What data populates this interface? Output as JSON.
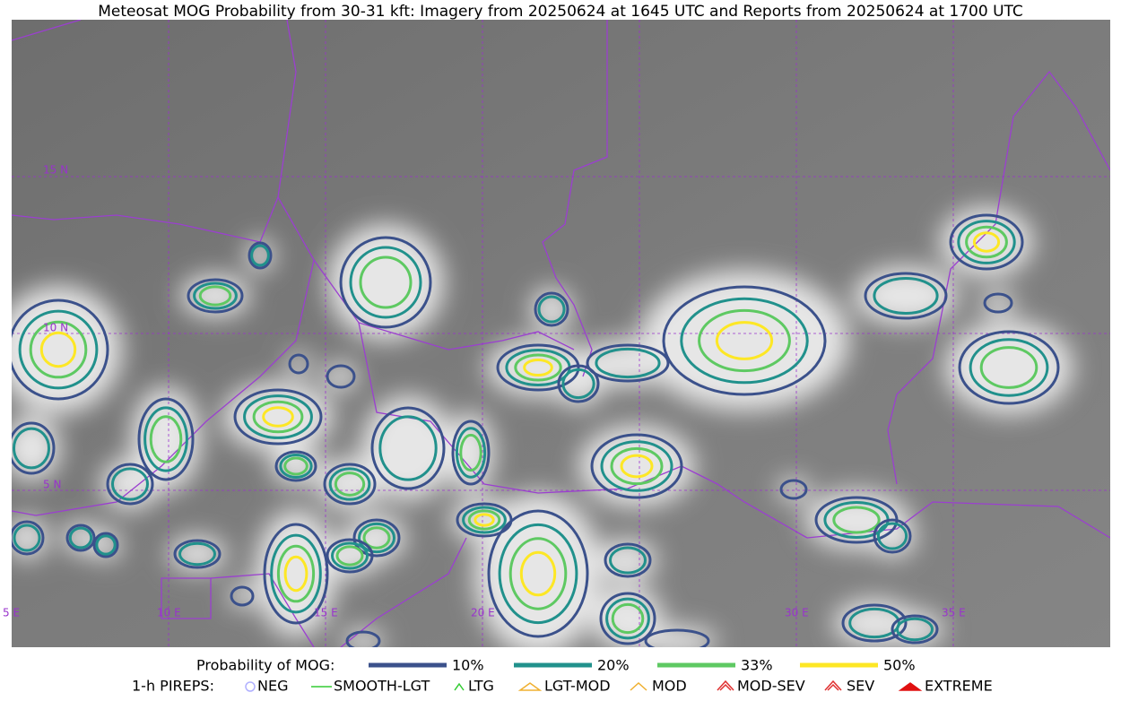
{
  "title": "Meteosat MOG Probability from 30-31 kft: Imagery from 20250624 at 1645 UTC and Reports from 20250624 at 1700 UTC",
  "grid_labels": {
    "lat": [
      "15 N",
      "10 N",
      "5 N"
    ],
    "lon": [
      "5 E",
      "10 E",
      "15 E",
      "20 E",
      "30 E",
      "35 E"
    ]
  },
  "legend": {
    "probability": {
      "title": "Probability of MOG:",
      "items": [
        {
          "label": "10%",
          "color": "#3b518b"
        },
        {
          "label": "20%",
          "color": "#21918c"
        },
        {
          "label": "33%",
          "color": "#5ec962"
        },
        {
          "label": "50%",
          "color": "#fde725"
        }
      ]
    },
    "pireps": {
      "title": "1-h PIREPS:",
      "items": [
        "NEG",
        "SMOOTH-LGT",
        "LTG",
        "LGT-MOD",
        "MOD",
        "MOD-SEV",
        "SEV",
        "EXTREME"
      ]
    }
  }
}
